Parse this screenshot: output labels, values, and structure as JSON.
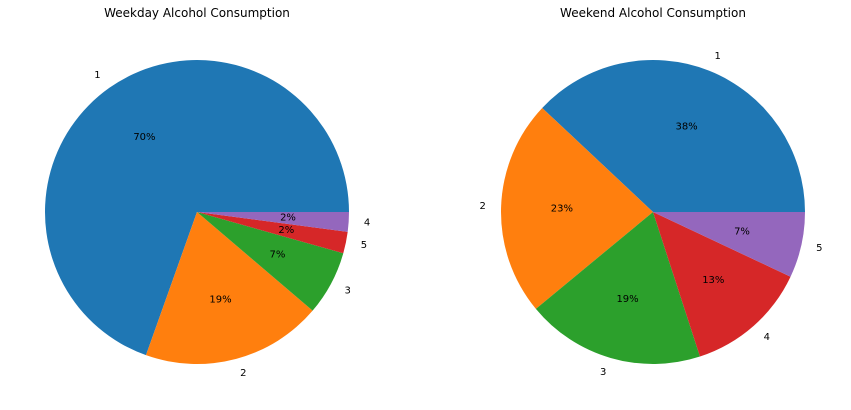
{
  "chart_data": [
    {
      "type": "pie",
      "title": "Weekday Alcohol Consumption",
      "labels": [
        "1",
        "2",
        "3",
        "5",
        "4"
      ],
      "values": [
        69.9,
        19.3,
        6.9,
        2.3,
        2.1
      ],
      "value_labels": [
        "70%",
        "19%",
        "7%",
        "2%",
        "2%"
      ],
      "colors": [
        "#1f77b4",
        "#ff7f0e",
        "#2ca02c",
        "#d62728",
        "#9467bd"
      ],
      "start_angle_deg": 0,
      "direction": "counterclockwise"
    },
    {
      "type": "pie",
      "title": "Weekend Alcohol Consumption",
      "labels": [
        "1",
        "2",
        "3",
        "4",
        "5"
      ],
      "values": [
        38.0,
        23.0,
        19.0,
        13.0,
        7.0
      ],
      "value_labels": [
        "38%",
        "23%",
        "19%",
        "13%",
        "7%"
      ],
      "colors": [
        "#1f77b4",
        "#ff7f0e",
        "#2ca02c",
        "#d62728",
        "#9467bd"
      ],
      "start_angle_deg": 0,
      "direction": "counterclockwise"
    }
  ]
}
